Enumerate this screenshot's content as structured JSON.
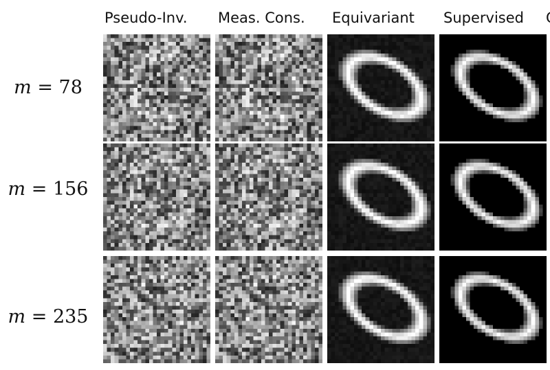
{
  "columns": [
    {
      "key": "pseudo_inv",
      "label": "Pseudo-Inv."
    },
    {
      "key": "meas_cons",
      "label": "Meas. Cons."
    },
    {
      "key": "equivariant",
      "label": "Equivariant"
    },
    {
      "key": "supervised",
      "label": "Supervised"
    },
    {
      "key": "cut_off",
      "label": "G"
    }
  ],
  "rows": [
    {
      "var": "m",
      "eq": "=",
      "value": "78"
    },
    {
      "var": "m",
      "eq": "=",
      "value": "156"
    },
    {
      "var": "m",
      "eq": "=",
      "value": "235"
    }
  ]
}
